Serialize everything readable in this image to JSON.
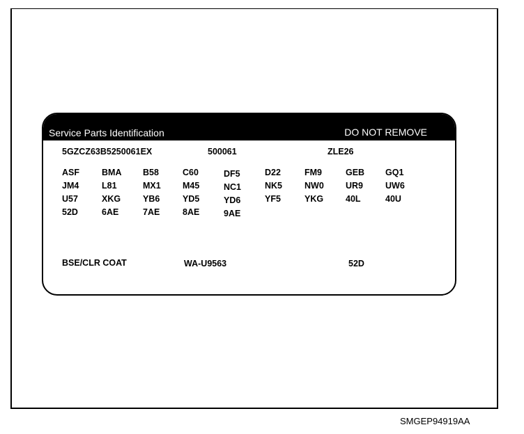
{
  "label": {
    "header_left": "Service Parts Identification",
    "header_right": "DO NOT REMOVE",
    "vin": "5GZCZ63B5250061EX",
    "number": "500061",
    "code": "ZLE26",
    "option_codes": [
      [
        "ASF",
        "BMA",
        "B58",
        "C60",
        "DF5",
        "D22",
        "FM9",
        "GEB",
        "GQ1"
      ],
      [
        "JM4",
        "L81",
        "MX1",
        "M45",
        "NC1",
        "NK5",
        "NW0",
        "UR9",
        "UW6"
      ],
      [
        "U57",
        "XKG",
        "YB6",
        "YD5",
        "YD6",
        "YF5",
        "YKG",
        "40L",
        "40U"
      ],
      [
        "52D",
        "6AE",
        "7AE",
        "8AE",
        "9AE"
      ]
    ],
    "paint_label": "BSE/CLR COAT",
    "paint_code": "WA-U9563",
    "paint_option": "52D"
  },
  "figure_id": "SMGEP94919AA"
}
